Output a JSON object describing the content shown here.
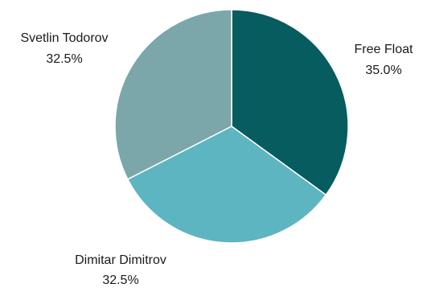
{
  "chart_data": {
    "type": "pie",
    "title": "",
    "slices": [
      {
        "label": "Free Float",
        "value": 35.0,
        "display": "35.0%",
        "color": "#065c5f"
      },
      {
        "label": "Dimitar Dimitrov",
        "value": 32.5,
        "display": "32.5%",
        "color": "#5db5c1"
      },
      {
        "label": "Svetlin Todorov",
        "value": 32.5,
        "display": "32.5%",
        "color": "#7ba6aa"
      }
    ],
    "start_angle": "12 o'clock",
    "direction": "clockwise",
    "legend": "none",
    "labels": "outside"
  }
}
